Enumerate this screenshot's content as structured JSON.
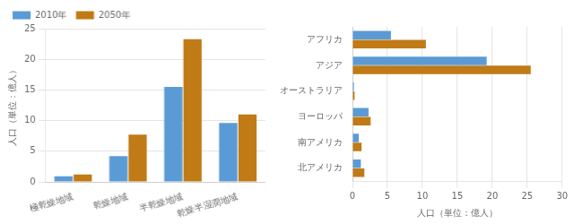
{
  "chart_data": [
    {
      "type": "bar",
      "categories": [
        "極乾燥地域",
        "乾燥地域",
        "半乾燥地域",
        "乾燥半湿潤地域"
      ],
      "series": [
        {
          "name": "2010年",
          "color": "#5B9BD5",
          "values": [
            0.9,
            4.2,
            15.5,
            9.6
          ]
        },
        {
          "name": "2050年",
          "color": "#C07A16",
          "values": [
            1.2,
            7.7,
            23.3,
            11.0
          ]
        }
      ],
      "ylabel": "人口（単位：億人）",
      "ylim": [
        0,
        25
      ],
      "yticks": [
        0,
        5,
        10,
        15,
        20,
        25
      ],
      "grid": true,
      "legend": "upper left"
    },
    {
      "type": "bar",
      "orientation": "horizontal",
      "categories": [
        "アフリカ",
        "アジア",
        "オーストラリア",
        "ヨーロッパ",
        "南アメリカ",
        "北アメリカ"
      ],
      "series": [
        {
          "name": "2010年",
          "color": "#5B9BD5",
          "values": [
            5.5,
            19.2,
            0.2,
            2.3,
            0.9,
            1.2
          ]
        },
        {
          "name": "2050年",
          "color": "#C07A16",
          "values": [
            10.5,
            25.5,
            0.3,
            2.6,
            1.3,
            1.7
          ]
        }
      ],
      "xlabel": "人口（単位：億人）",
      "xlim": [
        0,
        30
      ],
      "xticks": [
        0,
        5,
        10,
        15,
        20,
        25,
        30
      ],
      "grid": true
    }
  ]
}
